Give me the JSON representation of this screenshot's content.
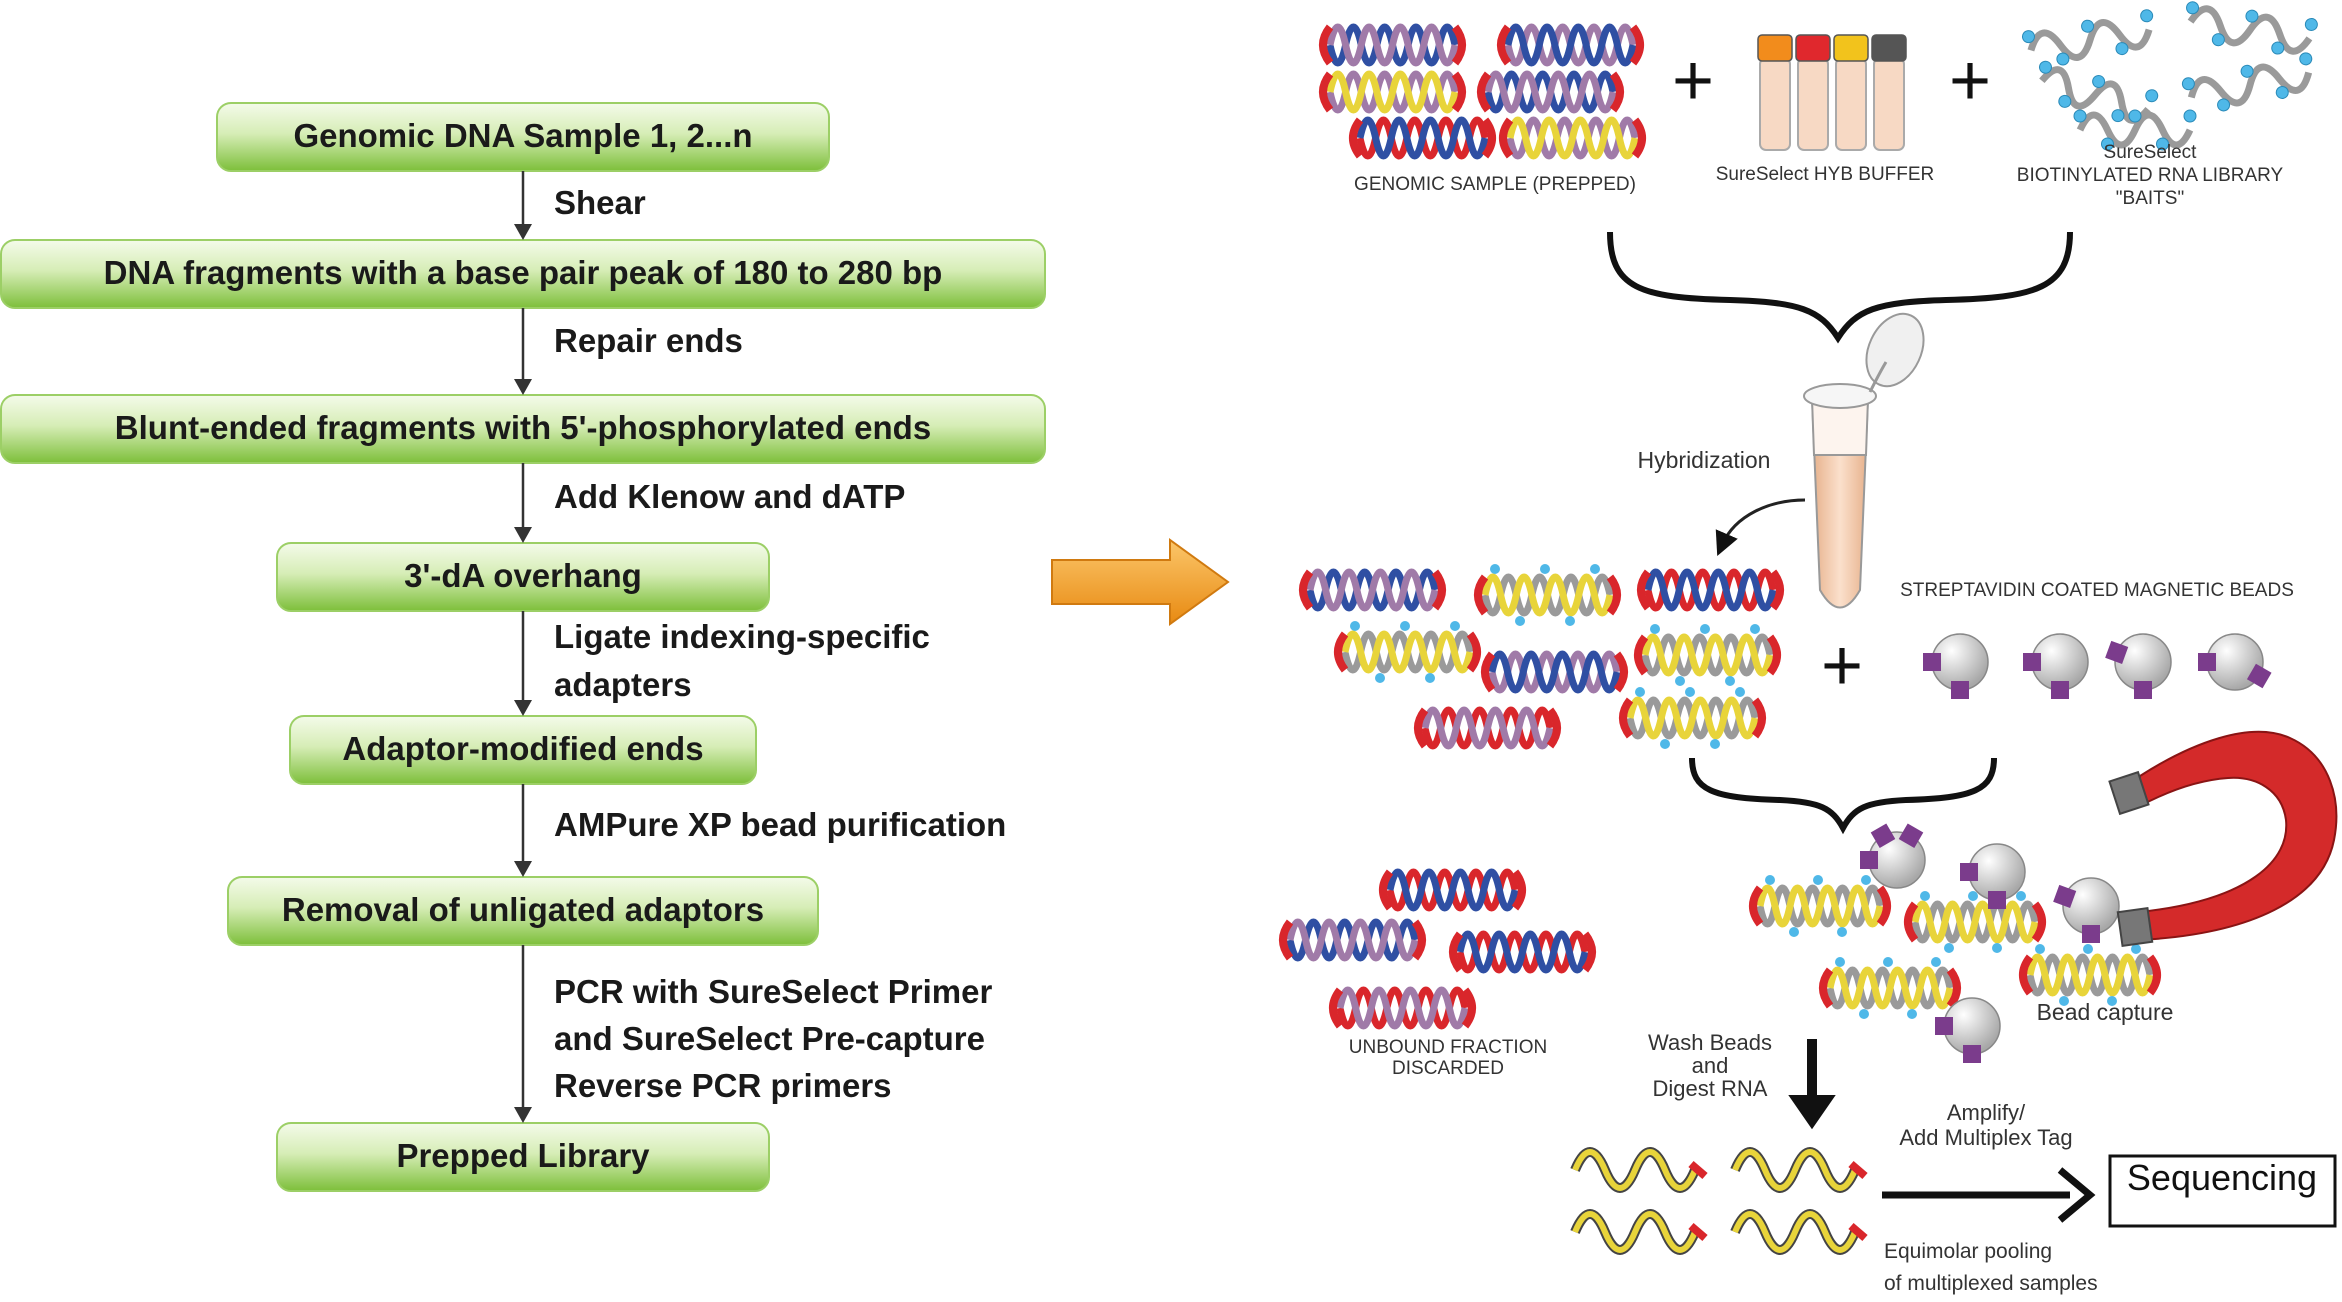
{
  "flowchart": {
    "boxes": [
      "Genomic DNA Sample 1, 2...n",
      "DNA fragments with a base pair peak of 180 to 280 bp",
      "Blunt-ended fragments with 5'-phosphorylated ends",
      "3'-dA overhang",
      "Adaptor-modified ends",
      "Removal of unligated adaptors",
      "Prepped Library"
    ],
    "steps": [
      [
        "Shear"
      ],
      [
        "Repair ends"
      ],
      [
        "Add Klenow and dATP"
      ],
      [
        "Ligate indexing-specific",
        "adapters"
      ],
      [
        "AMPure XP bead purification"
      ],
      [
        "PCR with SureSelect Primer",
        "and SureSelect Pre-capture",
        "Reverse PCR primers"
      ]
    ],
    "colors": {
      "box_light": "#eaf7d6",
      "box_dark": "#7dbf3a",
      "arrow": "#333333"
    }
  },
  "transition_arrow": {
    "color": "#f29a25"
  },
  "capture": {
    "inputs": {
      "genomic_sample_label": "GENOMIC SAMPLE (PREPPED)",
      "hyb_buffer_label": "SureSelect HYB BUFFER",
      "baits_label": [
        "SureSelect",
        "BIOTINYLATED RNA LIBRARY",
        "\"BAITS\""
      ],
      "plus": "+"
    },
    "hybridization_label": "Hybridization",
    "beads_label": "STREPTAVIDIN COATED MAGNETIC BEADS",
    "unbound_label": [
      "UNBOUND FRACTION",
      "DISCARDED"
    ],
    "bead_capture_label": "Bead capture",
    "wash_label": [
      "Wash Beads",
      "and",
      "Digest RNA"
    ],
    "amplify_label": [
      "Amplify/",
      "Add Multiplex Tag"
    ],
    "pooling_label": [
      "Equimolar pooling",
      "of multiplexed samples"
    ],
    "sequencing_label": "Sequencing",
    "colors": {
      "red": "#d9262b",
      "blue": "#2f4fa3",
      "purple": "#a07aa8",
      "yellow": "#e8d43a",
      "gray": "#9a9a9a",
      "bait_dot": "#4fb8e8",
      "bead": "#c9c9c9",
      "bead_tab": "#7b3c8c",
      "tube": "#f5c9a8",
      "magnet": "#d42a2a"
    },
    "tube_caps": [
      "#f28c1c",
      "#e0282d",
      "#f2c31c",
      "#555555"
    ]
  }
}
